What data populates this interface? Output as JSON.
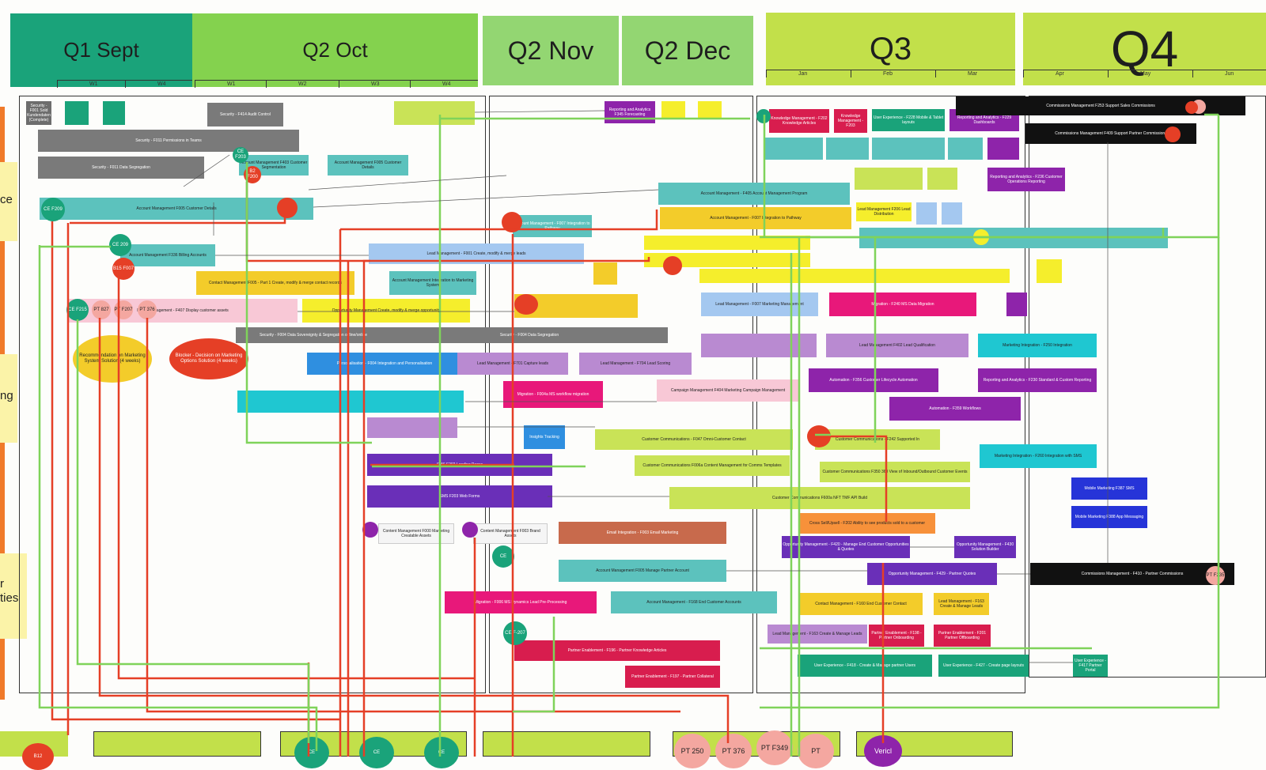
{
  "headers": [
    {
      "label": "Q1 Sept",
      "color": "#1aa37a"
    },
    {
      "label": "Q2 Oct",
      "color": "#84d24e"
    },
    {
      "label": "Q2 Nov",
      "color": "#93d672"
    },
    {
      "label": "Q2 Dec",
      "color": "#93d672"
    },
    {
      "label": "Q3",
      "color": "#c2e04a"
    },
    {
      "label": "Q4",
      "color": "#c2e04a"
    }
  ],
  "weeks": [
    "W1",
    "W4",
    "W1",
    "W2",
    "W3",
    "W4"
  ],
  "months": [
    "Jan",
    "Feb",
    "Mar",
    "Apr",
    "May",
    "Jun"
  ],
  "side_labels": [
    "ce",
    "ng",
    "r",
    "ties"
  ],
  "cards": {
    "sec1": "Security - F001 Sold Kundendaten (Complete)",
    "sec2": "Security - F414 Audit Control",
    "sec3": "Security - F011 Permissions in Teams",
    "sec4": "Security - F011 Data Segregation",
    "acct1": "Account Management F403 Customer Segmentation",
    "acct2": "Account Management F005 Customer Details",
    "acct3": "Account Management F336 Billing Accounts",
    "contact1": "Contact Management F005 - Part 1 Create, modify & merge contact records",
    "lead1": "Lead Management - F001 Create, modify & merge leads",
    "pers1": "Personalisation - F004 Integration and Personalisation",
    "oppty1": "Opportunity Management Create, modify & merge opportunity",
    "model1": "Model Management - F407 Display customer assets",
    "rec1": "Recommendation on Marketing System Solution (4 weeks)",
    "block1": "Blocker - Decision on Marketing Options Solution (4 weeks)",
    "sec5": "Security - F004 Data Sovereignty & Segregation offline/online",
    "sec6": "Security - F004 Data Segregation",
    "lead2": "Lead Management - F701 Capture leads",
    "lead3": "Lead Management - F704 Lead Scoring",
    "mig1": "Migration - F004a MS workflow migration",
    "camp1": "Campaign Management F404 Marketing Campaign Management",
    "sms1": "SMS F202 Landing Pages",
    "sms2": "SMS F203 Web Forms",
    "insights": "Insights Tracking",
    "cc1": "Customer Communications - F047 Omni-Customer Contact",
    "cc2": "Customer Communications F006a Content Management for Comms Templates",
    "cc3": "Customer Communications - F242 Supported In",
    "cc4": "Customer Communications F350 360 View of Inbound/Outbound Customer Events",
    "cc5": "Customer Communications F600a NFT TMF API Build",
    "cross": "Cross Sell/Upsell - F202 Ability to see products sold to a customer",
    "email1": "Email Integration - F003 Email Marketing",
    "content2": "Content Management F000 Marketing Creatable Assets",
    "content3": "Content Management F003 Brand Assets",
    "acct4": "Account Management F005 Manage Partner Account",
    "mig2": "Migration - F006 MS Dynamics Lead Pre-Processing",
    "acct5": "Account Management - F168 End Customer Accounts",
    "pe1": "Partner Enablement - F196 - Partner Knowledge Articles",
    "pe2": "Partner Enablement - F197 - Partner Collateral",
    "opp2": "Opportunity Management - F420 - Manage End Customer Opportunities & Quotes",
    "opp3": "Opportunity Management - F430 Solution Builder",
    "opp4": "Opportunity Management - F429 - Partner Quotes",
    "contact4": "Contact Management - F160 End Customer Contact",
    "lead4": "Lead Management - F163 Create & Manage Leads",
    "pe3": "Partner Enablement - F198 - Partner Onboarding",
    "pe4": "Partner Enablement - F201 Partner Offboarding",
    "ux1": "User Experience - F418 - Create & Manage partner Users",
    "ux2": "User Experience - F427 - Create page layouts",
    "ux3": "User Experience - F417 Partner Portal",
    "comm1": "Commissions Management F253 Support Sales Commissions",
    "comm2": "Commissions Management F409 Support Partner Commissions",
    "comm3": "Commissions Management - F410 - Partner Commissions",
    "rep1": "Reporting and Analytics - F229 Dashboards",
    "rep2": "Reporting and Analytics - F236 Customer Operations Reporting",
    "rep3": "Reporting and Analytics - F230 Standard & Custom Reporting",
    "mig3": "Migration - F240 MS Data Migration",
    "auto1": "Automation - F356 Customer Lifecycle Automation",
    "auto2": "Automation - F359 Workflows",
    "int1": "Marketing Integration - F250 Integration",
    "int2": "Marketing Integration - F260 Integration with SMS",
    "mob1": "Mobile Marketing F387 SMS",
    "mob2": "Mobile Marketing F388 App Messaging",
    "know1": "Knowledge Management - F202 Knowledge Articles",
    "know2": "Knowledge Management - F203",
    "ux4": "User Experience - F228 Mobile & Tablet layouts",
    "acct6": "Account Management - F405 Account Management Program",
    "acct7": "Account Management - F007 Integration to Pathway",
    "rep4": "Reporting and Analytics F345 Forecasting",
    "lead5": "Lead Management - F007 Marketing Management",
    "lead6": "Lead Management F402 Lead Qualification",
    "lead7": "Lead Management F206 Lead Distribution",
    "acct8": "Account Management - F007 Integration to Pathway",
    "acct9": "Account Management Integration to Marketing System"
  },
  "circles": {
    "ce1": "CE F209",
    "ce2": "CE 209",
    "b15": "B15 F007",
    "ce3": "CE F215",
    "pt1": "PT 827",
    "pt2": "PT F207",
    "pt3": "PT 376",
    "b2": "B2 F200",
    "ce4": "CE F203",
    "ce5": "CE F-207",
    "pt4": "PT F235",
    "ce6": "CE",
    "bot1": "B12",
    "bot2": "CE",
    "bot3": "CE",
    "bot4": "CE",
    "bot5": "PT 250",
    "bot6": "PT 376",
    "bot7": "PT F349",
    "bot8": "PT",
    "bot9": "Vericl"
  }
}
